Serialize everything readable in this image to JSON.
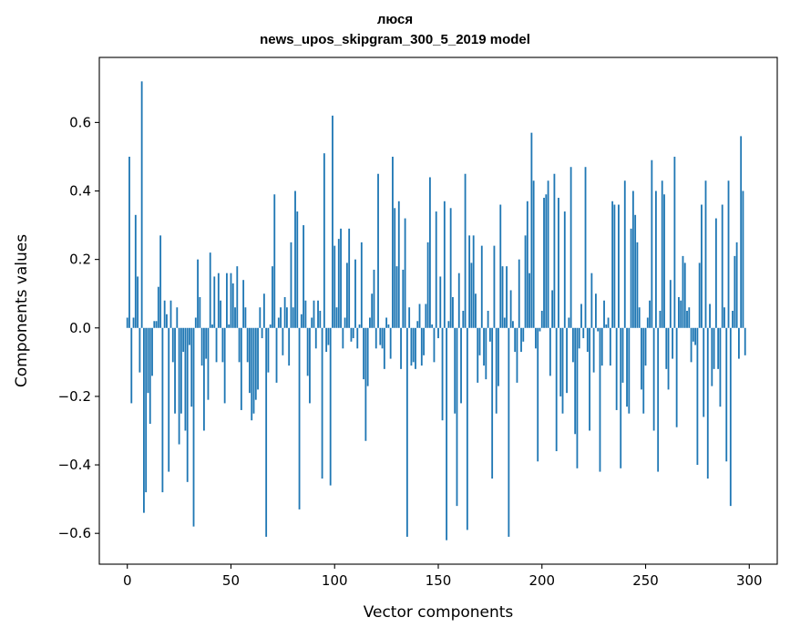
{
  "chart_data": {
    "type": "bar",
    "title": "люся",
    "subtitle": "news_upos_skipgram_300_5_2019 model",
    "xlabel": "Vector components",
    "ylabel": "Components values",
    "xlim": [
      -13.5,
      313.5
    ],
    "ylim": [
      -0.69,
      0.79
    ],
    "xticks": [
      0,
      50,
      100,
      150,
      200,
      250,
      300
    ],
    "xtick_labels": [
      "0",
      "50",
      "100",
      "150",
      "200",
      "250",
      "300"
    ],
    "yticks": [
      -0.6,
      -0.4,
      -0.2,
      0.0,
      0.2,
      0.4,
      0.6
    ],
    "ytick_labels": [
      "−0.6",
      "−0.4",
      "−0.2",
      "0.0",
      "0.2",
      "0.4",
      "0.6"
    ],
    "bar_color": "#1f77b4",
    "grid": false,
    "values": [
      0.03,
      0.5,
      -0.22,
      0.03,
      0.33,
      0.15,
      -0.13,
      0.72,
      -0.54,
      -0.48,
      -0.19,
      -0.28,
      -0.14,
      0.02,
      0.02,
      0.12,
      0.27,
      -0.48,
      0.08,
      0.04,
      -0.42,
      0.08,
      -0.1,
      -0.25,
      0.06,
      -0.34,
      -0.25,
      -0.07,
      -0.3,
      -0.45,
      -0.05,
      -0.23,
      -0.58,
      0.03,
      0.2,
      0.09,
      -0.11,
      -0.3,
      -0.09,
      -0.21,
      0.22,
      0.01,
      0.15,
      -0.1,
      0.16,
      0.08,
      -0.1,
      -0.22,
      0.16,
      0.01,
      0.16,
      0.13,
      0.06,
      0.18,
      -0.1,
      -0.24,
      0.14,
      0.06,
      -0.1,
      -0.19,
      -0.27,
      -0.25,
      -0.21,
      -0.18,
      0.06,
      -0.03,
      0.1,
      -0.61,
      -0.13,
      0.01,
      0.18,
      0.39,
      -0.16,
      0.03,
      0.06,
      -0.08,
      0.09,
      0.06,
      -0.11,
      0.25,
      0.06,
      0.4,
      0.34,
      -0.53,
      0.04,
      0.3,
      0.08,
      -0.14,
      -0.22,
      0.03,
      0.08,
      -0.06,
      0.08,
      0.05,
      -0.44,
      0.51,
      -0.07,
      -0.05,
      -0.46,
      0.62,
      0.24,
      0.06,
      0.26,
      0.29,
      -0.06,
      0.03,
      0.19,
      0.29,
      -0.04,
      -0.03,
      0.2,
      -0.06,
      0.01,
      0.25,
      -0.15,
      -0.33,
      -0.17,
      0.03,
      0.1,
      0.17,
      -0.06,
      0.45,
      -0.05,
      -0.06,
      -0.12,
      0.03,
      0.01,
      -0.09,
      0.5,
      0.35,
      0.18,
      0.37,
      -0.12,
      0.17,
      0.32,
      -0.61,
      0.06,
      -0.11,
      -0.1,
      -0.12,
      0.02,
      0.07,
      -0.11,
      -0.08,
      0.07,
      0.25,
      0.44,
      0.01,
      -0.1,
      0.34,
      -0.03,
      0.15,
      -0.27,
      0.37,
      -0.62,
      0.02,
      0.35,
      0.09,
      -0.25,
      -0.52,
      0.16,
      -0.22,
      0.05,
      0.45,
      -0.59,
      0.27,
      0.19,
      0.27,
      0.1,
      -0.16,
      -0.08,
      0.24,
      -0.11,
      -0.15,
      0.05,
      -0.04,
      -0.44,
      0.24,
      -0.25,
      -0.17,
      0.36,
      0.18,
      0.03,
      0.18,
      -0.61,
      0.11,
      0.02,
      -0.07,
      -0.16,
      0.2,
      -0.07,
      -0.04,
      0.27,
      0.37,
      0.16,
      0.57,
      0.43,
      -0.06,
      -0.39,
      -0.01,
      0.05,
      0.38,
      0.39,
      0.43,
      -0.14,
      0.11,
      0.45,
      -0.36,
      0.38,
      -0.2,
      -0.25,
      0.34,
      -0.19,
      0.03,
      0.47,
      -0.1,
      -0.31,
      -0.41,
      -0.06,
      0.07,
      -0.03,
      0.47,
      -0.07,
      -0.3,
      0.16,
      -0.13,
      0.1,
      -0.01,
      -0.42,
      -0.11,
      0.08,
      0.01,
      0.03,
      -0.11,
      0.37,
      0.36,
      -0.24,
      0.36,
      -0.41,
      -0.16,
      0.43,
      -0.23,
      -0.25,
      0.29,
      0.4,
      0.33,
      0.25,
      0.06,
      -0.18,
      -0.25,
      -0.11,
      0.03,
      0.08,
      0.49,
      -0.3,
      0.4,
      -0.42,
      0.05,
      0.43,
      0.39,
      -0.12,
      -0.18,
      0.14,
      -0.09,
      0.5,
      -0.29,
      0.09,
      0.08,
      0.21,
      0.19,
      0.05,
      0.06,
      -0.1,
      -0.04,
      -0.05,
      -0.4,
      0.19,
      0.36,
      -0.26,
      0.43,
      -0.44,
      0.07,
      -0.17,
      -0.12,
      0.32,
      -0.12,
      -0.23,
      0.36,
      0.06,
      -0.39,
      0.43,
      -0.52,
      0.05,
      0.21,
      0.25,
      -0.09,
      0.56,
      0.4,
      -0.08
    ]
  }
}
